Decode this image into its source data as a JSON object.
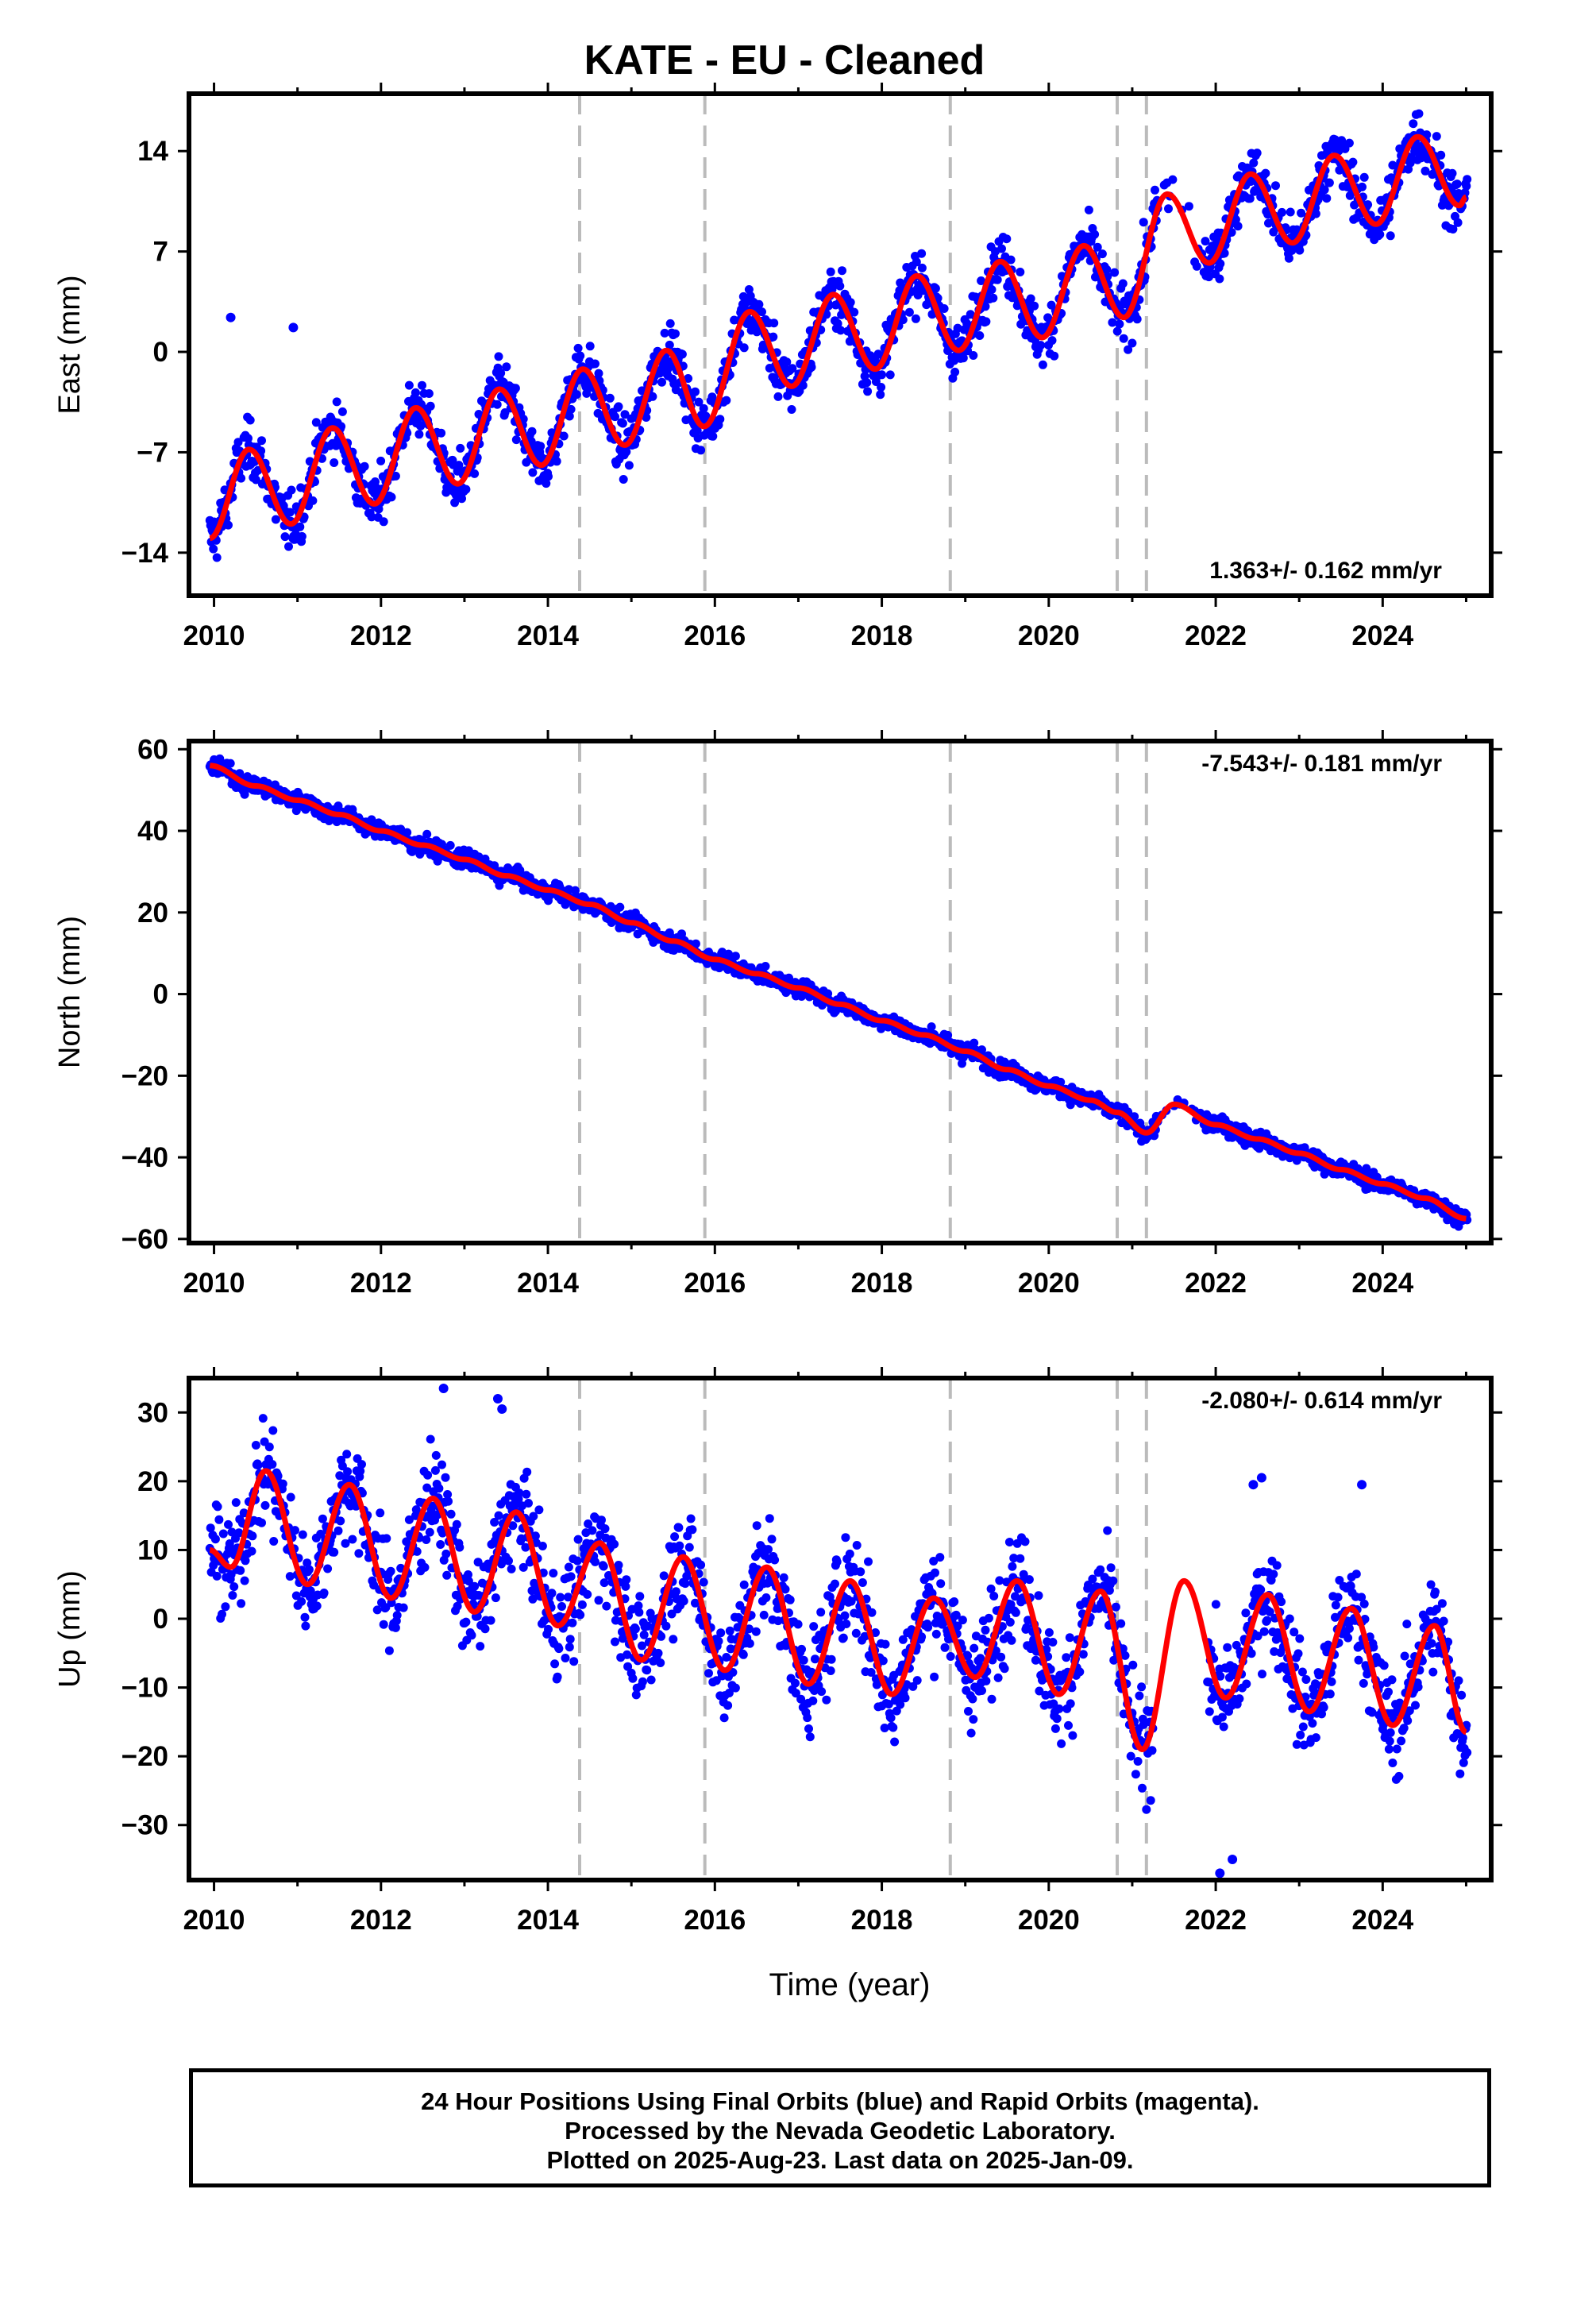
{
  "title": "KATE  - EU - Cleaned",
  "xlabel": "Time (year)",
  "footer": {
    "line1": "24 Hour Positions Using Final Orbits (blue) and Rapid Orbits (magenta).",
    "line2": "Processed by the Nevada Geodetic Laboratory.",
    "line3": "Plotted on 2025-Aug-23. Last data on 2025-Jan-09."
  },
  "colors": {
    "final_orbits": "#0000ff",
    "fit_curve": "#ff0000",
    "offset_lines": "#bbbbbb"
  },
  "chart_data": [
    {
      "type": "scatter",
      "component": "east",
      "ylabel": "East (mm)",
      "rate_label": "1.363+/- 0.162 mm/yr",
      "xlim": [
        2009.7,
        2025.3
      ],
      "ylim": [
        -17,
        18
      ],
      "x_ticks": [
        2010,
        2012,
        2014,
        2016,
        2018,
        2020,
        2022,
        2024
      ],
      "y_ticks": [
        -14,
        -7,
        0,
        7,
        14
      ],
      "offset_epochs": [
        2014.38,
        2015.88,
        2018.82,
        2020.82,
        2021.17
      ],
      "fit": {
        "x": [
          2009.95,
          2010.42,
          2010.92,
          2011.42,
          2011.92,
          2012.42,
          2012.92,
          2013.42,
          2013.92,
          2014.42,
          2014.92,
          2015.42,
          2015.87,
          2016.42,
          2016.92,
          2017.42,
          2017.92,
          2018.42,
          2018.92,
          2019.42,
          2019.92,
          2020.42,
          2020.9,
          2021.42,
          2021.92,
          2022.42,
          2022.92,
          2023.42,
          2023.92,
          2024.42,
          2024.92,
          2025.0
        ],
        "y": [
          -13,
          -6.8,
          -12,
          -5.3,
          -10.6,
          -3.9,
          -9.2,
          -2.6,
          -7.9,
          -1.2,
          -6.5,
          0.1,
          -5.2,
          2.8,
          -2.4,
          4.0,
          -1.2,
          5.3,
          0.1,
          6.3,
          1.0,
          7.4,
          2.4,
          11.0,
          6.2,
          12.4,
          7.6,
          13.7,
          8.9,
          15.0,
          10.2,
          10.8
        ]
      },
      "outliers": {
        "x": [
          2010.2,
          2010.95
        ],
        "y": [
          2.4,
          1.7
        ]
      }
    },
    {
      "type": "scatter",
      "component": "north",
      "ylabel": "North (mm)",
      "rate_label": "-7.543+/- 0.181 mm/yr",
      "xlim": [
        2009.7,
        2025.3
      ],
      "ylim": [
        -61,
        62
      ],
      "x_ticks": [
        2010,
        2012,
        2014,
        2016,
        2018,
        2020,
        2022,
        2024
      ],
      "y_ticks": [
        -60,
        -40,
        -20,
        0,
        20,
        40,
        60
      ],
      "offset_epochs": [
        2014.38,
        2015.88,
        2018.82,
        2020.82,
        2021.17
      ],
      "fit": {
        "x": [
          2009.95,
          2010.5,
          2011.0,
          2011.5,
          2012.0,
          2012.5,
          2013.0,
          2013.5,
          2014.0,
          2014.5,
          2015.0,
          2015.5,
          2016.0,
          2016.5,
          2017.0,
          2017.5,
          2018.0,
          2018.5,
          2019.0,
          2019.5,
          2020.0,
          2020.5,
          2020.82,
          2021.17,
          2021.5,
          2022.0,
          2022.5,
          2023.0,
          2023.5,
          2024.0,
          2024.5,
          2025.0
        ],
        "y": [
          56,
          51,
          47.5,
          44,
          40,
          36.5,
          33,
          29,
          25.5,
          22,
          17.5,
          13,
          8.5,
          5,
          1.5,
          -2.5,
          -6.5,
          -10,
          -14,
          -18.5,
          -22.5,
          -26,
          -29,
          -34,
          -27,
          -32,
          -35.5,
          -39,
          -43,
          -46.5,
          -50,
          -55
        ]
      }
    },
    {
      "type": "scatter",
      "component": "up",
      "ylabel": "Up (mm)",
      "rate_label": "-2.080+/- 0.614 mm/yr",
      "xlim": [
        2009.7,
        2025.3
      ],
      "ylim": [
        -38,
        35
      ],
      "x_ticks": [
        2010,
        2012,
        2014,
        2016,
        2018,
        2020,
        2022,
        2024
      ],
      "y_ticks": [
        -30,
        -20,
        -10,
        0,
        10,
        20,
        30
      ],
      "offset_epochs": [
        2014.38,
        2015.88,
        2018.82,
        2020.82,
        2021.17
      ],
      "fit": {
        "x": [
          2009.95,
          2010.2,
          2010.62,
          2011.12,
          2011.62,
          2012.12,
          2012.62,
          2013.12,
          2013.62,
          2014.12,
          2014.62,
          2015.12,
          2015.62,
          2016.12,
          2016.62,
          2017.12,
          2017.62,
          2018.12,
          2018.62,
          2019.12,
          2019.62,
          2020.12,
          2020.62,
          2021.12,
          2021.62,
          2022.12,
          2022.62,
          2023.12,
          2023.62,
          2024.12,
          2024.62,
          2025.0
        ],
        "y": [
          10,
          7.5,
          21.5,
          5,
          19.5,
          3,
          17.5,
          1,
          15.5,
          -1,
          11,
          -6,
          9,
          -7.5,
          7.5,
          -9.5,
          5.5,
          -11,
          3,
          -8.5,
          5.5,
          -11,
          4,
          -19,
          5.5,
          -11.5,
          3.5,
          -13.5,
          1.5,
          -15.5,
          -1,
          -16.5
        ]
      },
      "outliers": {
        "x": [
          2012.75,
          2013.4,
          2013.45,
          2022.45,
          2022.55,
          2023.75,
          2022.2,
          2022.05
        ],
        "y": [
          33.5,
          32,
          30.5,
          19.5,
          20.5,
          19.5,
          -35,
          -37
        ]
      }
    }
  ]
}
